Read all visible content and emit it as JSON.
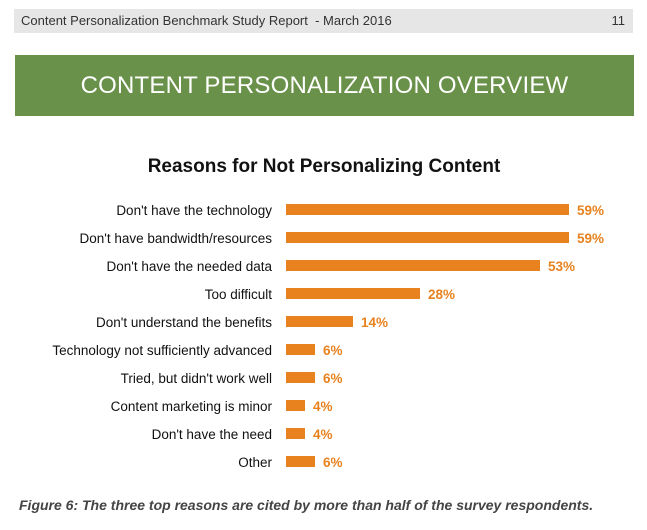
{
  "header": {
    "report_title": "Content Personalization Benchmark Study Report  - March 2016",
    "page_number": "11"
  },
  "section": {
    "title": "CONTENT PERSONALIZATION OVERVIEW"
  },
  "colors": {
    "header_band": "#e6e6e6",
    "section_banner": "#6a914a",
    "bar": "#e8821e",
    "value_text": "#e8821e"
  },
  "chart_data": {
    "type": "bar",
    "orientation": "horizontal",
    "title": "Reasons for Not Personalizing Content",
    "xlabel": "",
    "ylabel": "",
    "xlim": [
      0,
      59
    ],
    "grid": false,
    "legend": "none",
    "categories": [
      "Don't have the technology",
      "Don't have bandwidth/resources",
      "Don't have the needed data",
      "Too difficult",
      "Don't understand the benefits",
      "Technology not sufficiently advanced",
      "Tried, but didn't work well",
      "Content marketing is minor",
      "Don't have the need",
      "Other"
    ],
    "values": [
      59,
      59,
      53,
      28,
      14,
      6,
      6,
      4,
      4,
      6
    ],
    "value_labels": [
      "59%",
      "59%",
      "53%",
      "28%",
      "14%",
      "6%",
      "6%",
      "4%",
      "4%",
      "6%"
    ]
  },
  "caption": "Figure 6: The three top reasons are cited by more than half of the survey respondents."
}
